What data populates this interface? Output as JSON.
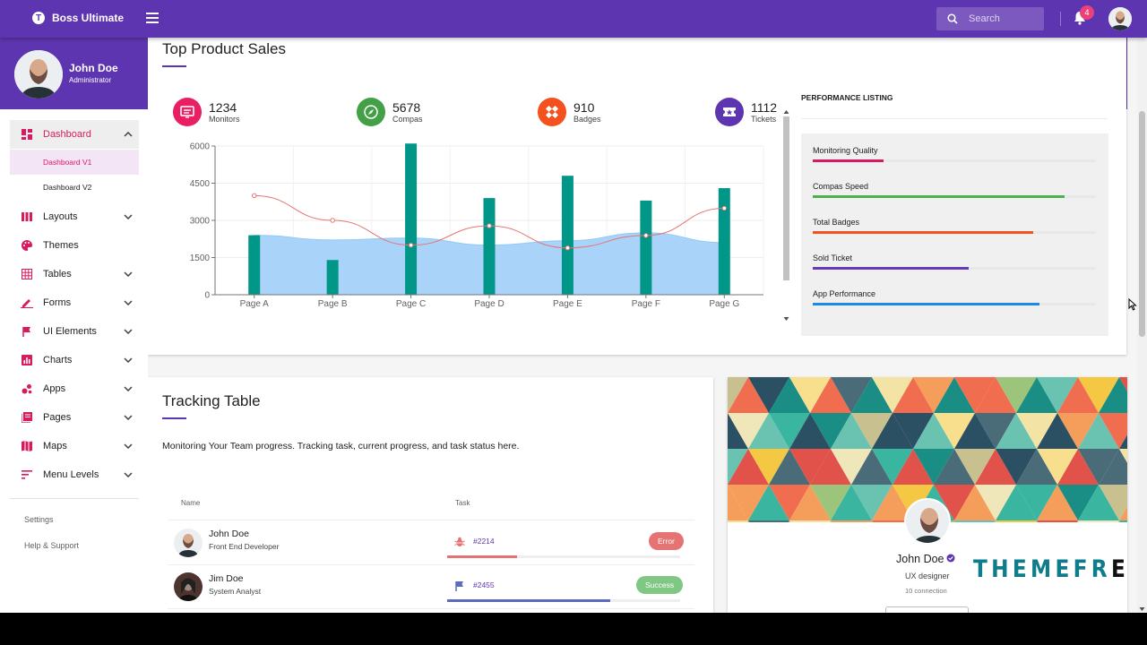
{
  "app": {
    "name": "Boss Ultimate",
    "notifications": "4"
  },
  "search": {
    "placeholder": "Search"
  },
  "user": {
    "name": "John Doe",
    "role": "Administrator"
  },
  "sidebar": {
    "items": [
      {
        "label": "Dashboard",
        "icon": "dashboard-icon",
        "expanded": true
      },
      {
        "label": "Layouts",
        "icon": "layouts-icon"
      },
      {
        "label": "Themes",
        "icon": "palette-icon"
      },
      {
        "label": "Tables",
        "icon": "grid-icon"
      },
      {
        "label": "Forms",
        "icon": "pencil-icon"
      },
      {
        "label": "UI Elements",
        "icon": "flag-icon"
      },
      {
        "label": "Charts",
        "icon": "bar-chart-icon"
      },
      {
        "label": "Apps",
        "icon": "apps-icon"
      },
      {
        "label": "Pages",
        "icon": "pages-icon"
      },
      {
        "label": "Maps",
        "icon": "map-icon"
      },
      {
        "label": "Menu Levels",
        "icon": "sort-icon"
      }
    ],
    "sub_items": [
      "Dashboard V1",
      "Dashboard V2"
    ],
    "links": [
      "Settings",
      "Help & Support"
    ]
  },
  "sales": {
    "title": "Top Product Sales",
    "stats": [
      {
        "value": "1234",
        "label": "Monitors",
        "color": "#e91e63",
        "icon": "monitor-icon"
      },
      {
        "value": "5678",
        "label": "Compas",
        "color": "#43a047",
        "icon": "compass-icon"
      },
      {
        "value": "910",
        "label": "Badges",
        "color": "#f4511e",
        "icon": "badge-icon"
      },
      {
        "value": "1112",
        "label": "Tickets",
        "color": "#5e35b1",
        "icon": "ticket-icon"
      }
    ]
  },
  "chart_data": {
    "type": "bar",
    "categories": [
      "Page A",
      "Page B",
      "Page C",
      "Page D",
      "Page E",
      "Page F",
      "Page G"
    ],
    "yticks": [
      0,
      1500,
      3000,
      4500,
      6000
    ],
    "ylim": [
      0,
      6000
    ],
    "grid": true,
    "series": [
      {
        "type": "bar",
        "color": "#009688",
        "values": [
          2400,
          1400,
          6100,
          3900,
          4800,
          3800,
          4300
        ]
      },
      {
        "type": "area",
        "color": "#a9d3f8",
        "values": [
          2400,
          2210,
          2290,
          2000,
          2181,
          2500,
          2100
        ]
      },
      {
        "type": "line",
        "color": "#e57373",
        "values": [
          4000,
          3000,
          2000,
          2780,
          1890,
          2390,
          3490
        ]
      }
    ]
  },
  "performance": {
    "title": "PERFORMANCE LISTING",
    "items": [
      {
        "label": "Monitoring Quality",
        "value": 0.25,
        "color": "#d81b60"
      },
      {
        "label": "Compas Speed",
        "value": 0.89,
        "color": "#4caf50"
      },
      {
        "label": "Total Badges",
        "value": 0.78,
        "color": "#f4511e"
      },
      {
        "label": "Sold Ticket",
        "value": 0.55,
        "color": "#673ab7"
      },
      {
        "label": "App Performance",
        "value": 0.8,
        "color": "#1e88e5"
      }
    ]
  },
  "tracking": {
    "title": "Tracking Table",
    "description": "Monitoring Your Team progress. Tracking task, current progress, and task status here.",
    "columns": [
      "Name",
      "Task"
    ],
    "rows": [
      {
        "name": "John Doe",
        "role": "Front End Developer",
        "task": "#2214",
        "progress": 0.3,
        "status": "Error",
        "status_color": "#e57373",
        "task_icon": "bug-icon",
        "task_color": "#e57373"
      },
      {
        "name": "Jim Doe",
        "role": "System Analyst",
        "task": "#2455",
        "progress": 0.7,
        "status": "Success",
        "status_color": "#81c784",
        "task_icon": "flag-icon",
        "task_color": "#5c6bc0"
      }
    ]
  },
  "profile_card": {
    "name": "John Doe",
    "role": "UX designer",
    "connections": "10 connection",
    "logo": "THEMEFR",
    "logo_tail": "E"
  }
}
